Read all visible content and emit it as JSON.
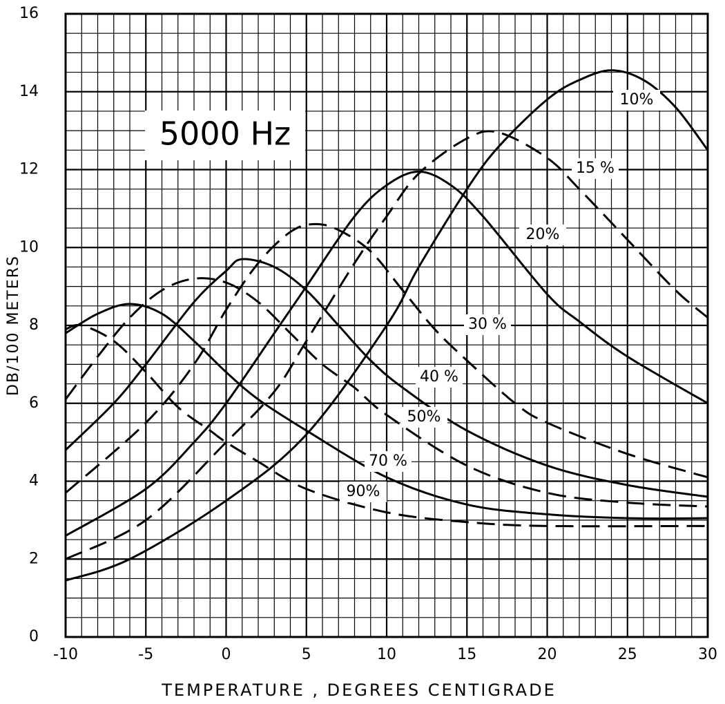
{
  "chart_data": {
    "type": "line",
    "annotation": "5000 Hz",
    "xlabel": "TEMPERATURE , DEGREES CENTIGRADE",
    "ylabel": "DB/100 METERS",
    "xlim": [
      -10,
      30
    ],
    "ylim": [
      0,
      16
    ],
    "xticks": [
      -10,
      -5,
      0,
      5,
      10,
      15,
      20,
      25,
      30
    ],
    "yticks": [
      0,
      2,
      4,
      6,
      8,
      10,
      12,
      14,
      16
    ],
    "minor_xticks": [
      -10,
      -9,
      -8,
      -7,
      -6,
      -5,
      -4,
      -3,
      -2,
      -1,
      0,
      1,
      2,
      3,
      4,
      5,
      6,
      7,
      8,
      9,
      10,
      11,
      12,
      13,
      14,
      15,
      16,
      17,
      18,
      19,
      20,
      21,
      22,
      23,
      24,
      25,
      26,
      27,
      28,
      29,
      30
    ],
    "minor_yticks": [
      0,
      0.5,
      1,
      1.5,
      2,
      2.5,
      3,
      3.5,
      4,
      4.5,
      5,
      5.5,
      6,
      6.5,
      7,
      7.5,
      8,
      8.5,
      9,
      9.5,
      10,
      10.5,
      11,
      11.5,
      12,
      12.5,
      13,
      13.5,
      14,
      14.5,
      15,
      15.5,
      16
    ],
    "grid": true,
    "series": [
      {
        "name": "10%",
        "color": "#000000",
        "dashed": false,
        "x": [
          -10,
          -6,
          0,
          5,
          10,
          12,
          15,
          17,
          20,
          22,
          24,
          26,
          28,
          30
        ],
        "values": [
          1.45,
          2.0,
          3.5,
          5.2,
          8.0,
          9.5,
          11.5,
          12.6,
          13.8,
          14.3,
          14.55,
          14.3,
          13.6,
          12.5
        ]
      },
      {
        "name": "15 %",
        "color": "#000000",
        "dashed": true,
        "x": [
          -10,
          -5,
          0,
          3,
          5,
          8,
          10,
          12,
          15,
          17,
          20,
          22,
          25,
          28,
          30
        ],
        "values": [
          2.0,
          3.0,
          5.0,
          6.3,
          7.6,
          9.6,
          10.8,
          11.9,
          12.8,
          12.95,
          12.3,
          11.5,
          10.2,
          8.9,
          8.2
        ]
      },
      {
        "name": "20%",
        "color": "#000000",
        "dashed": false,
        "x": [
          -10,
          -5,
          -2,
          0,
          3,
          5,
          8,
          10,
          12,
          14,
          16,
          20,
          22,
          25,
          30
        ],
        "values": [
          2.6,
          3.8,
          5.0,
          6.0,
          7.8,
          9.0,
          10.8,
          11.6,
          11.95,
          11.6,
          10.8,
          8.8,
          8.1,
          7.2,
          6.0
        ]
      },
      {
        "name": "30 %",
        "color": "#000000",
        "dashed": true,
        "x": [
          -10,
          -5,
          -2,
          0,
          2,
          4,
          5.5,
          7,
          9,
          11,
          13,
          15,
          18,
          20,
          25,
          30
        ],
        "values": [
          3.7,
          5.5,
          7.0,
          8.4,
          9.6,
          10.4,
          10.6,
          10.45,
          9.9,
          8.9,
          7.9,
          7.1,
          6.0,
          5.5,
          4.7,
          4.1
        ]
      },
      {
        "name": "40 %",
        "color": "#000000",
        "dashed": false,
        "x": [
          -10,
          -7,
          -5,
          -2,
          0,
          1,
          3,
          5,
          7,
          9,
          11,
          15,
          20,
          25,
          30
        ],
        "values": [
          4.8,
          6.0,
          7.0,
          8.6,
          9.4,
          9.7,
          9.5,
          8.9,
          8.0,
          7.1,
          6.4,
          5.3,
          4.4,
          3.9,
          3.6
        ]
      },
      {
        "name": "50%",
        "color": "#000000",
        "dashed": true,
        "x": [
          -10,
          -8,
          -6,
          -4,
          -2,
          0,
          2,
          4,
          6,
          8,
          10,
          15,
          20,
          25,
          30
        ],
        "values": [
          6.1,
          7.2,
          8.2,
          8.9,
          9.2,
          9.1,
          8.6,
          7.8,
          7.0,
          6.4,
          5.7,
          4.4,
          3.7,
          3.45,
          3.35
        ]
      },
      {
        "name": "70 %",
        "color": "#000000",
        "dashed": false,
        "x": [
          -10,
          -8,
          -6,
          -4,
          -2,
          0,
          2,
          5,
          10,
          15,
          20,
          25,
          30
        ],
        "values": [
          7.8,
          8.3,
          8.55,
          8.3,
          7.6,
          6.8,
          6.1,
          5.3,
          4.1,
          3.4,
          3.15,
          3.05,
          3.05
        ]
      },
      {
        "name": "90%",
        "color": "#000000",
        "dashed": true,
        "x": [
          -10,
          -9,
          -7,
          -5,
          -3,
          -1,
          0,
          2,
          5,
          10,
          15,
          20,
          30
        ],
        "values": [
          7.9,
          8.0,
          7.6,
          6.8,
          5.9,
          5.3,
          5.0,
          4.5,
          3.8,
          3.2,
          2.95,
          2.85,
          2.85
        ]
      }
    ]
  }
}
